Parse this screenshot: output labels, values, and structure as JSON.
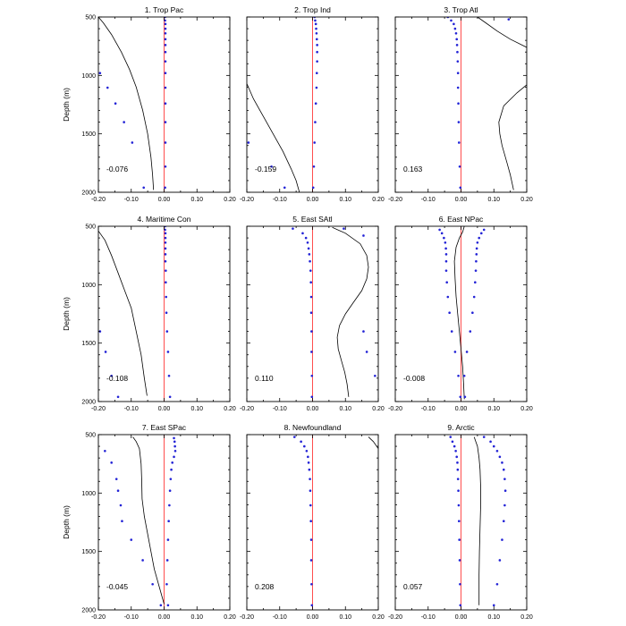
{
  "chart_data": {
    "type": "line",
    "ylabel": "Depth (m)",
    "xlim": [
      -0.2,
      0.2
    ],
    "ylim": [
      500,
      2000
    ],
    "x_ticks": [
      "-0.20",
      "-0.10",
      "0.00",
      "0.10",
      "0.20"
    ],
    "y_ticks": [
      "500",
      "1000",
      "1500",
      "2000"
    ],
    "colors": {
      "zero_line": "#ff3b3b",
      "dots": "#2323d6",
      "curve": "#000000",
      "frame": "#000000"
    },
    "panels": [
      {
        "title": "1. Trop Pac",
        "annotation": "-0.076",
        "curve": {
          "depth": [
            500,
            550,
            650,
            800,
            950,
            1100,
            1300,
            1500,
            1700,
            1850,
            1980
          ],
          "value": [
            -0.2,
            -0.185,
            -0.16,
            -0.13,
            -0.105,
            -0.085,
            -0.065,
            -0.05,
            -0.04,
            -0.035,
            -0.032
          ]
        },
        "dots_left": {
          "depth": [
            980,
            1105,
            1240,
            1400,
            1575,
            1960
          ],
          "value": [
            -0.195,
            -0.172,
            -0.148,
            -0.122,
            -0.097,
            -0.062
          ]
        },
        "dots_right": {
          "depth": [
            500,
            530,
            560,
            600,
            640,
            690,
            740,
            800,
            880,
            980,
            1105,
            1240,
            1400,
            1575,
            1780,
            1960
          ],
          "value": [
            0.003,
            0.003,
            0.004,
            0.004,
            0.004,
            0.004,
            0.004,
            0.004,
            0.004,
            0.004,
            0.004,
            0.004,
            0.004,
            0.004,
            0.004,
            0.003
          ]
        }
      },
      {
        "title": "2. Trop Ind",
        "annotation": "-0.159",
        "curve": {
          "depth": [
            1070,
            1200,
            1350,
            1500,
            1650,
            1800,
            1900,
            2000
          ],
          "value": [
            -0.2,
            -0.18,
            -0.15,
            -0.12,
            -0.09,
            -0.065,
            -0.05,
            -0.04
          ]
        },
        "dots_left": {
          "depth": [
            1575,
            1780,
            1960
          ],
          "value": [
            -0.195,
            -0.125,
            -0.085
          ]
        },
        "dots_right": {
          "depth": [
            500,
            530,
            560,
            600,
            640,
            690,
            740,
            800,
            880,
            980,
            1105,
            1240,
            1400,
            1575,
            1780,
            1960
          ],
          "value": [
            0.006,
            0.008,
            0.01,
            0.011,
            0.012,
            0.013,
            0.014,
            0.014,
            0.014,
            0.013,
            0.012,
            0.01,
            0.008,
            0.006,
            0.004,
            0.002
          ]
        }
      },
      {
        "title": "3. Trop Atl",
        "annotation": "0.163",
        "curve": {
          "depth": [
            500,
            550,
            620,
            690,
            760,
            1080,
            1150,
            1260,
            1400,
            1500,
            1600,
            1750,
            1850,
            1980
          ],
          "value": [
            0.05,
            0.075,
            0.11,
            0.15,
            0.2,
            0.2,
            0.17,
            0.13,
            0.115,
            0.118,
            0.125,
            0.14,
            0.15,
            0.16
          ]
        },
        "dots_left": {
          "depth": [
            500,
            530,
            560,
            600,
            640,
            690,
            740,
            800,
            880,
            980,
            1105,
            1240,
            1400,
            1575,
            1780,
            1960
          ],
          "value": [
            -0.04,
            -0.03,
            -0.022,
            -0.018,
            -0.015,
            -0.013,
            -0.012,
            -0.011,
            -0.01,
            -0.009,
            -0.009,
            -0.008,
            -0.007,
            -0.006,
            -0.004,
            -0.002
          ]
        },
        "dots_right": {
          "depth": [
            520
          ],
          "value": [
            0.145
          ]
        }
      },
      {
        "title": "4. Maritime Con",
        "annotation": "-0.108",
        "curve": {
          "depth": [
            540,
            620,
            750,
            900,
            1050,
            1200,
            1400,
            1600,
            1800,
            1950
          ],
          "value": [
            -0.2,
            -0.18,
            -0.16,
            -0.14,
            -0.12,
            -0.1,
            -0.085,
            -0.07,
            -0.06,
            -0.052
          ]
        },
        "dots_left": {
          "depth": [
            1400,
            1575,
            1780,
            1960
          ],
          "value": [
            -0.195,
            -0.178,
            -0.16,
            -0.14
          ]
        },
        "dots_right": {
          "depth": [
            500,
            530,
            560,
            600,
            640,
            690,
            740,
            800,
            880,
            980,
            1105,
            1240,
            1400,
            1575,
            1780,
            1960
          ],
          "value": [
            0.003,
            0.003,
            0.004,
            0.004,
            0.004,
            0.004,
            0.004,
            0.004,
            0.005,
            0.005,
            0.006,
            0.007,
            0.009,
            0.012,
            0.015,
            0.018
          ]
        }
      },
      {
        "title": "5. East SAtl",
        "annotation": "0.110",
        "curve": {
          "depth": [
            510,
            560,
            650,
            750,
            850,
            950,
            1050,
            1150,
            1250,
            1350,
            1450,
            1550,
            1650,
            1750,
            1850,
            1960
          ],
          "value": [
            0.06,
            0.1,
            0.145,
            0.165,
            0.17,
            0.165,
            0.15,
            0.125,
            0.1,
            0.082,
            0.075,
            0.078,
            0.088,
            0.098,
            0.105,
            0.11
          ]
        },
        "dots_left": {
          "depth": [
            520,
            560,
            600,
            640,
            690,
            740,
            800,
            880,
            980,
            1105,
            1240,
            1400,
            1575,
            1780,
            1960
          ],
          "value": [
            -0.06,
            -0.03,
            -0.02,
            -0.015,
            -0.012,
            -0.01,
            -0.008,
            -0.006,
            -0.005,
            -0.004,
            -0.004,
            -0.003,
            -0.003,
            -0.002,
            -0.002
          ]
        },
        "dots_right": {
          "depth": [
            520,
            580,
            1400,
            1575,
            1780
          ],
          "value": [
            0.095,
            0.155,
            0.155,
            0.165,
            0.19
          ]
        }
      },
      {
        "title": "6. East NPac",
        "annotation": "-0.008",
        "curve": {
          "depth": [
            500,
            550,
            600,
            680,
            800,
            950,
            1100,
            1250,
            1400,
            1550,
            1700,
            1850,
            1980
          ],
          "value": [
            0.01,
            0.005,
            -0.005,
            -0.015,
            -0.02,
            -0.018,
            -0.015,
            -0.01,
            -0.005,
            0.0,
            0.005,
            0.008,
            0.01
          ]
        },
        "dots_left": {
          "depth": [
            530,
            560,
            600,
            640,
            690,
            740,
            800,
            880,
            980,
            1105,
            1240,
            1400,
            1575,
            1780,
            1960
          ],
          "value": [
            -0.065,
            -0.058,
            -0.052,
            -0.048,
            -0.046,
            -0.045,
            -0.045,
            -0.045,
            -0.043,
            -0.04,
            -0.035,
            -0.028,
            -0.018,
            -0.008,
            -0.002
          ]
        },
        "dots_right": {
          "depth": [
            530,
            560,
            600,
            640,
            690,
            740,
            800,
            880,
            980,
            1105,
            1240,
            1400,
            1575,
            1780,
            1960
          ],
          "value": [
            0.07,
            0.062,
            0.055,
            0.05,
            0.048,
            0.047,
            0.046,
            0.045,
            0.043,
            0.04,
            0.035,
            0.028,
            0.018,
            0.01,
            0.012
          ]
        }
      },
      {
        "title": "7. East SPac",
        "annotation": "-0.045",
        "curve": {
          "depth": [
            520,
            560,
            620,
            750,
            900,
            1050,
            1200,
            1350,
            1500,
            1650,
            1800,
            1950
          ],
          "value": [
            -0.095,
            -0.085,
            -0.075,
            -0.07,
            -0.068,
            -0.067,
            -0.06,
            -0.05,
            -0.04,
            -0.03,
            -0.015,
            0.0
          ]
        },
        "dots_left": {
          "depth": [
            640,
            740,
            880,
            980,
            1105,
            1240,
            1400,
            1575,
            1780,
            1960
          ],
          "value": [
            -0.18,
            -0.16,
            -0.145,
            -0.14,
            -0.132,
            -0.128,
            -0.1,
            -0.065,
            -0.035,
            -0.01
          ]
        },
        "dots_right": {
          "depth": [
            530,
            560,
            600,
            640,
            690,
            740,
            800,
            880,
            980,
            1105,
            1240,
            1400,
            1575,
            1780,
            1960
          ],
          "value": [
            0.03,
            0.032,
            0.033,
            0.034,
            0.03,
            0.025,
            0.022,
            0.02,
            0.018,
            0.016,
            0.014,
            0.012,
            0.01,
            0.008,
            0.012
          ]
        }
      },
      {
        "title": "8. Newfoundland",
        "annotation": "0.208",
        "curve": {
          "depth": [
            520,
            560,
            620
          ],
          "value": [
            0.17,
            0.185,
            0.2
          ]
        },
        "dots_left": {
          "depth": [
            520,
            560,
            600,
            640,
            690,
            740,
            800,
            880,
            980,
            1105,
            1240,
            1400,
            1575,
            1780,
            1960
          ],
          "value": [
            -0.055,
            -0.035,
            -0.025,
            -0.018,
            -0.014,
            -0.012,
            -0.01,
            -0.008,
            -0.007,
            -0.006,
            -0.005,
            -0.004,
            -0.004,
            -0.003,
            -0.002
          ]
        },
        "dots_right": {
          "depth": [],
          "value": []
        }
      },
      {
        "title": "9. Arctic",
        "annotation": "0.057",
        "curve": {
          "depth": [
            520,
            600,
            700,
            800,
            950,
            1100,
            1300,
            1500,
            1700,
            1850,
            1960
          ],
          "value": [
            0.04,
            0.05,
            0.055,
            0.058,
            0.06,
            0.06,
            0.058,
            0.056,
            0.055,
            0.055,
            0.055
          ]
        },
        "dots_left": {
          "depth": [
            520,
            560,
            600,
            640,
            690,
            740,
            800,
            880,
            980,
            1105,
            1240,
            1400,
            1575,
            1780,
            1960
          ],
          "value": [
            -0.032,
            -0.026,
            -0.02,
            -0.016,
            -0.013,
            -0.011,
            -0.01,
            -0.009,
            -0.008,
            -0.007,
            -0.006,
            -0.005,
            -0.004,
            -0.003,
            -0.002
          ]
        },
        "dots_right": {
          "depth": [
            520,
            560,
            600,
            640,
            690,
            740,
            800,
            880,
            980,
            1105,
            1240,
            1400,
            1575,
            1780,
            1960
          ],
          "value": [
            0.07,
            0.09,
            0.1,
            0.11,
            0.118,
            0.125,
            0.13,
            0.133,
            0.135,
            0.133,
            0.13,
            0.125,
            0.118,
            0.11,
            0.1
          ]
        }
      }
    ]
  }
}
